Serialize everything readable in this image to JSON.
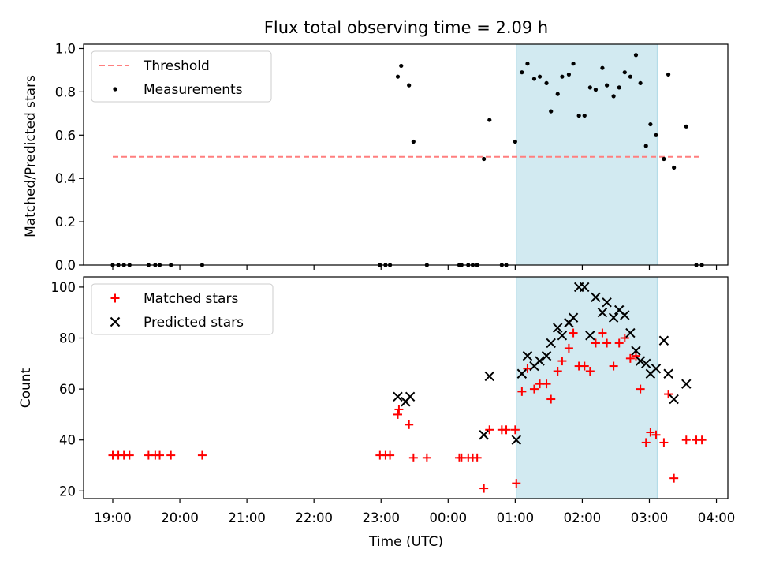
{
  "title": "Flux total observing time = 2.09 h",
  "xlabel": "Time (UTC)",
  "x_ticks": [
    "19:00",
    "20:00",
    "21:00",
    "22:00",
    "23:00",
    "00:00",
    "01:00",
    "02:00",
    "03:00",
    "04:00"
  ],
  "shaded_span": [
    "01:01",
    "03:07"
  ],
  "colors": {
    "shade": "#add8e6",
    "threshold": "#ff7f7f",
    "measurement": "#000000",
    "matched": "#ff0000",
    "predicted": "#000000"
  },
  "chart_data": [
    {
      "type": "scatter",
      "ylabel": "Matched/Predicted stars",
      "ylim": [
        0,
        1.02
      ],
      "y_ticks": [
        0.0,
        0.2,
        0.4,
        0.6,
        0.8,
        1.0
      ],
      "y_tick_labels": [
        "0.0",
        "0.2",
        "0.4",
        "0.6",
        "0.8",
        "1.0"
      ],
      "legend": {
        "placement": "upper-left",
        "entries": [
          "Threshold",
          "Measurements"
        ]
      },
      "threshold": {
        "name": "Threshold",
        "y": 0.5,
        "x_range": [
          "19:00",
          "03:48"
        ]
      },
      "series": [
        {
          "name": "Measurements",
          "points": [
            [
              "19:00",
              0
            ],
            [
              "19:05",
              0
            ],
            [
              "19:10",
              0
            ],
            [
              "19:15",
              0
            ],
            [
              "19:32",
              0
            ],
            [
              "19:38",
              0
            ],
            [
              "19:42",
              0
            ],
            [
              "19:52",
              0
            ],
            [
              "20:20",
              0
            ],
            [
              "22:59",
              0
            ],
            [
              "23:04",
              0
            ],
            [
              "23:08",
              0
            ],
            [
              "23:15",
              0.87
            ],
            [
              "23:18",
              0.92
            ],
            [
              "23:25",
              0.83
            ],
            [
              "23:29",
              0.57
            ],
            [
              "23:41",
              0
            ],
            [
              "00:10",
              0
            ],
            [
              "00:12",
              0
            ],
            [
              "00:18",
              0
            ],
            [
              "00:22",
              0
            ],
            [
              "00:26",
              0
            ],
            [
              "00:32",
              0.49
            ],
            [
              "00:37",
              0.67
            ],
            [
              "00:48",
              0
            ],
            [
              "00:52",
              0
            ],
            [
              "01:00",
              0.57
            ],
            [
              "01:06",
              0.89
            ],
            [
              "01:11",
              0.93
            ],
            [
              "01:17",
              0.86
            ],
            [
              "01:22",
              0.87
            ],
            [
              "01:28",
              0.84
            ],
            [
              "01:32",
              0.71
            ],
            [
              "01:38",
              0.79
            ],
            [
              "01:42",
              0.87
            ],
            [
              "01:48",
              0.88
            ],
            [
              "01:52",
              0.93
            ],
            [
              "01:57",
              0.69
            ],
            [
              "02:02",
              0.69
            ],
            [
              "02:07",
              0.82
            ],
            [
              "02:12",
              0.81
            ],
            [
              "02:18",
              0.91
            ],
            [
              "02:22",
              0.83
            ],
            [
              "02:28",
              0.78
            ],
            [
              "02:33",
              0.82
            ],
            [
              "02:38",
              0.89
            ],
            [
              "02:43",
              0.87
            ],
            [
              "02:48",
              0.97
            ],
            [
              "02:52",
              0.84
            ],
            [
              "02:57",
              0.55
            ],
            [
              "03:01",
              0.65
            ],
            [
              "03:06",
              0.6
            ],
            [
              "03:13",
              0.49
            ],
            [
              "03:17",
              0.88
            ],
            [
              "03:22",
              0.45
            ],
            [
              "03:33",
              0.64
            ],
            [
              "03:42",
              0
            ],
            [
              "03:47",
              0
            ]
          ]
        }
      ]
    },
    {
      "type": "scatter",
      "ylabel": "Count",
      "ylim": [
        17,
        104
      ],
      "y_ticks": [
        20,
        40,
        60,
        80,
        100
      ],
      "y_tick_labels": [
        "20",
        "40",
        "60",
        "80",
        "100"
      ],
      "legend": {
        "placement": "upper-left",
        "entries": [
          "Matched stars",
          "Predicted stars"
        ]
      },
      "series": [
        {
          "name": "Matched stars",
          "marker": "plus",
          "points": [
            [
              "19:00",
              34
            ],
            [
              "19:05",
              34
            ],
            [
              "19:10",
              34
            ],
            [
              "19:15",
              34
            ],
            [
              "19:32",
              34
            ],
            [
              "19:38",
              34
            ],
            [
              "19:42",
              34
            ],
            [
              "19:52",
              34
            ],
            [
              "20:20",
              34
            ],
            [
              "22:59",
              34
            ],
            [
              "23:04",
              34
            ],
            [
              "23:08",
              34
            ],
            [
              "23:15",
              50
            ],
            [
              "23:16",
              52
            ],
            [
              "23:25",
              46
            ],
            [
              "23:29",
              33
            ],
            [
              "23:41",
              33
            ],
            [
              "00:10",
              33
            ],
            [
              "00:12",
              33
            ],
            [
              "00:18",
              33
            ],
            [
              "00:22",
              33
            ],
            [
              "00:26",
              33
            ],
            [
              "00:32",
              21
            ],
            [
              "00:37",
              44
            ],
            [
              "00:48",
              44
            ],
            [
              "00:52",
              44
            ],
            [
              "01:00",
              44
            ],
            [
              "01:01",
              23
            ],
            [
              "01:06",
              59
            ],
            [
              "01:11",
              68
            ],
            [
              "01:17",
              60
            ],
            [
              "01:22",
              62
            ],
            [
              "01:28",
              62
            ],
            [
              "01:32",
              56
            ],
            [
              "01:38",
              67
            ],
            [
              "01:42",
              71
            ],
            [
              "01:48",
              76
            ],
            [
              "01:52",
              82
            ],
            [
              "01:57",
              69
            ],
            [
              "02:02",
              69
            ],
            [
              "02:07",
              67
            ],
            [
              "02:12",
              78
            ],
            [
              "02:18",
              82
            ],
            [
              "02:22",
              78
            ],
            [
              "02:28",
              69
            ],
            [
              "02:33",
              78
            ],
            [
              "02:38",
              80
            ],
            [
              "02:43",
              72
            ],
            [
              "02:48",
              73
            ],
            [
              "02:52",
              60
            ],
            [
              "02:57",
              39
            ],
            [
              "03:01",
              43
            ],
            [
              "03:06",
              42
            ],
            [
              "03:13",
              39
            ],
            [
              "03:17",
              58
            ],
            [
              "03:22",
              25
            ],
            [
              "03:33",
              40
            ],
            [
              "03:42",
              40
            ],
            [
              "03:47",
              40
            ]
          ]
        },
        {
          "name": "Predicted stars",
          "marker": "x",
          "points": [
            [
              "23:15",
              57
            ],
            [
              "23:22",
              55
            ],
            [
              "23:26",
              57
            ],
            [
              "00:32",
              42
            ],
            [
              "00:37",
              65
            ],
            [
              "01:01",
              40
            ],
            [
              "01:06",
              66
            ],
            [
              "01:11",
              73
            ],
            [
              "01:17",
              69
            ],
            [
              "01:22",
              71
            ],
            [
              "01:28",
              73
            ],
            [
              "01:32",
              78
            ],
            [
              "01:38",
              84
            ],
            [
              "01:42",
              81
            ],
            [
              "01:48",
              86
            ],
            [
              "01:52",
              88
            ],
            [
              "01:57",
              100
            ],
            [
              "02:02",
              100
            ],
            [
              "02:07",
              81
            ],
            [
              "02:12",
              96
            ],
            [
              "02:18",
              90
            ],
            [
              "02:22",
              94
            ],
            [
              "02:28",
              88
            ],
            [
              "02:33",
              91
            ],
            [
              "02:38",
              89
            ],
            [
              "02:43",
              82
            ],
            [
              "02:48",
              75
            ],
            [
              "02:52",
              71
            ],
            [
              "02:57",
              70
            ],
            [
              "03:01",
              66
            ],
            [
              "03:06",
              68
            ],
            [
              "03:13",
              79
            ],
            [
              "03:17",
              66
            ],
            [
              "03:22",
              56
            ],
            [
              "03:33",
              62
            ]
          ]
        }
      ]
    }
  ]
}
